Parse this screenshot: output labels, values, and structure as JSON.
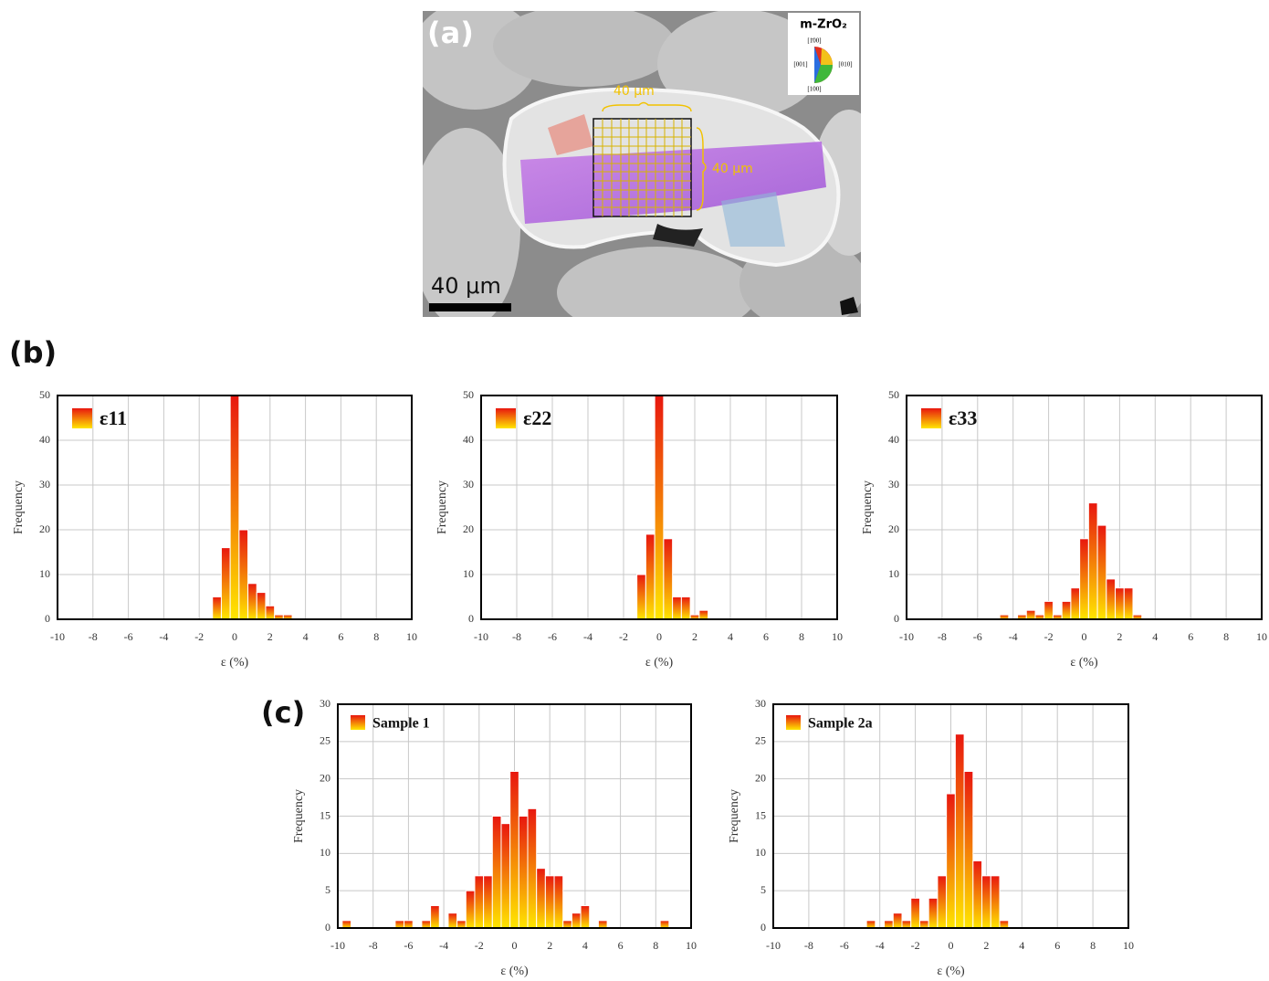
{
  "panel_a": {
    "label": "(a)",
    "ipf_title": "m-ZrO₂",
    "ipf_top": "[1̄00]",
    "ipf_left": "[001]",
    "ipf_right": "[010]",
    "ipf_bottom": "[100]",
    "grid_width": "40 μm",
    "grid_height": "40 μm",
    "scale_bar": "40 μm"
  },
  "panel_labels": {
    "b": "(b)",
    "c": "(c)"
  },
  "chart_data": [
    {
      "type": "histogram",
      "xlabel": "ε (%)",
      "ylabel": "Frequency",
      "grid": true,
      "series": [
        {
          "name": "ε11",
          "colors": [
            "#ffe600",
            "#e8170f"
          ],
          "counts": [
            5,
            16,
            50,
            20,
            8,
            6,
            3,
            1,
            1
          ]
        }
      ],
      "bins": [
        -1.25,
        -0.75,
        -0.25,
        0.25,
        0.75,
        1.25,
        1.75,
        2.25,
        2.75,
        3.25
      ],
      "xlim": [
        -10,
        10
      ],
      "xticks": [
        -10,
        -8,
        -6,
        -4,
        -2,
        0,
        2,
        4,
        6,
        8,
        10
      ],
      "ylim": [
        0,
        50
      ],
      "yticks": [
        0,
        10,
        20,
        30,
        40,
        50
      ]
    },
    {
      "type": "histogram",
      "xlabel": "ε (%)",
      "ylabel": "Frequency",
      "grid": true,
      "series": [
        {
          "name": "ε22",
          "colors": [
            "#ffe600",
            "#e8170f"
          ],
          "counts": [
            10,
            19,
            50,
            18,
            5,
            5,
            1,
            2
          ]
        }
      ],
      "bins": [
        -1.25,
        -0.75,
        -0.25,
        0.25,
        0.75,
        1.25,
        1.75,
        2.25,
        2.75
      ],
      "xlim": [
        -10,
        10
      ],
      "xticks": [
        -10,
        -8,
        -6,
        -4,
        -2,
        0,
        2,
        4,
        6,
        8,
        10
      ],
      "ylim": [
        0,
        50
      ],
      "yticks": [
        0,
        10,
        20,
        30,
        40,
        50
      ]
    },
    {
      "type": "histogram",
      "xlabel": "ε (%)",
      "ylabel": "Frequency",
      "grid": true,
      "series": [
        {
          "name": "ε33",
          "colors": [
            "#ffe600",
            "#e8170f"
          ],
          "counts": [
            1,
            0,
            1,
            2,
            1,
            4,
            1,
            4,
            7,
            18,
            26,
            21,
            9,
            7,
            7,
            1
          ]
        }
      ],
      "bins": [
        -4.75,
        -4.25,
        -3.75,
        -3.25,
        -2.75,
        -2.25,
        -1.75,
        -1.25,
        -0.75,
        -0.25,
        0.25,
        0.75,
        1.25,
        1.75,
        2.25,
        2.75,
        3.25
      ],
      "xlim": [
        -10,
        10
      ],
      "xticks": [
        -10,
        -8,
        -6,
        -4,
        -2,
        0,
        2,
        4,
        6,
        8,
        10
      ],
      "ylim": [
        0,
        50
      ],
      "yticks": [
        0,
        10,
        20,
        30,
        40,
        50
      ]
    },
    {
      "type": "histogram",
      "xlabel": "ε (%)",
      "ylabel": "Frequency",
      "grid": true,
      "series": [
        {
          "name": "Sample 1",
          "colors": [
            "#ffe600",
            "#e8170f"
          ],
          "counts": [
            1,
            0,
            0,
            0,
            0,
            0,
            1,
            1,
            0,
            1,
            3,
            0,
            2,
            1,
            5,
            7,
            7,
            15,
            14,
            21,
            15,
            16,
            8,
            7,
            7,
            1,
            2,
            3,
            0,
            1,
            0,
            0,
            0,
            0,
            0,
            0,
            1
          ]
        }
      ],
      "bins": [
        -9.75,
        -9.25,
        -8.75,
        -8.25,
        -7.75,
        -7.25,
        -6.75,
        -6.25,
        -5.75,
        -5.25,
        -4.75,
        -4.25,
        -3.75,
        -3.25,
        -2.75,
        -2.25,
        -1.75,
        -1.25,
        -0.75,
        -0.25,
        0.25,
        0.75,
        1.25,
        1.75,
        2.25,
        2.75,
        3.25,
        3.75,
        4.25,
        4.75,
        5.25,
        5.75,
        6.25,
        6.75,
        7.25,
        7.75,
        8.25,
        8.75
      ],
      "xlim": [
        -10,
        10
      ],
      "xticks": [
        -10,
        -8,
        -6,
        -4,
        -2,
        0,
        2,
        4,
        6,
        8,
        10
      ],
      "ylim": [
        0,
        30
      ],
      "yticks": [
        0,
        5,
        10,
        15,
        20,
        25,
        30
      ]
    },
    {
      "type": "histogram",
      "xlabel": "ε (%)",
      "ylabel": "Frequency",
      "grid": true,
      "series": [
        {
          "name": "Sample 2a",
          "colors": [
            "#ffe600",
            "#e8170f"
          ],
          "counts": [
            1,
            0,
            1,
            2,
            1,
            4,
            1,
            4,
            7,
            18,
            26,
            21,
            9,
            7,
            7,
            1
          ]
        }
      ],
      "bins": [
        -4.75,
        -4.25,
        -3.75,
        -3.25,
        -2.75,
        -2.25,
        -1.75,
        -1.25,
        -0.75,
        -0.25,
        0.25,
        0.75,
        1.25,
        1.75,
        2.25,
        2.75,
        3.25
      ],
      "xlim": [
        -10,
        10
      ],
      "xticks": [
        -10,
        -8,
        -6,
        -4,
        -2,
        0,
        2,
        4,
        6,
        8,
        10
      ],
      "ylim": [
        0,
        30
      ],
      "yticks": [
        0,
        5,
        10,
        15,
        20,
        25,
        30
      ]
    }
  ]
}
